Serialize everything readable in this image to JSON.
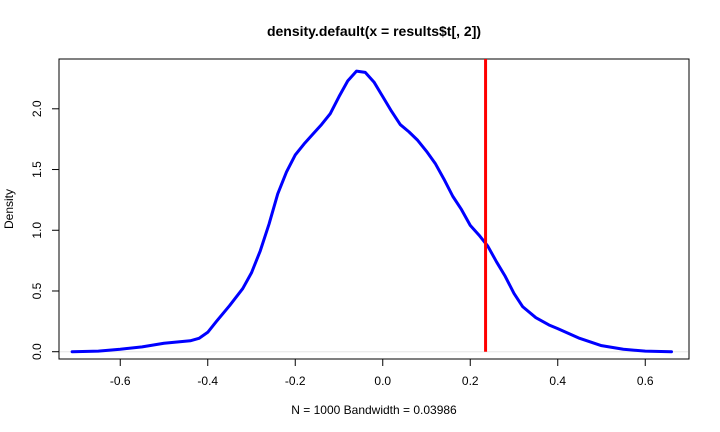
{
  "chart_data": {
    "type": "line",
    "title": "density.default(x = results$t[, 2])",
    "xlabel": "N = 1000   Bandwidth = 0.03986",
    "ylabel": "Density",
    "xlim": [
      -0.74,
      0.7
    ],
    "ylim": [
      -0.06,
      2.41
    ],
    "x_ticks": [
      -0.6,
      -0.4,
      -0.2,
      0.0,
      0.2,
      0.4,
      0.6
    ],
    "x_tick_labels": [
      "-0.6",
      "-0.4",
      "-0.2",
      "0.0",
      "0.2",
      "0.4",
      "0.6"
    ],
    "y_ticks": [
      0.0,
      0.5,
      1.0,
      1.5,
      2.0
    ],
    "y_tick_labels": [
      "0.0",
      "0.5",
      "1.0",
      "1.5",
      "2.0"
    ],
    "grid": false,
    "series": [
      {
        "color": "#0000ff",
        "x": [
          -0.71,
          -0.65,
          -0.6,
          -0.55,
          -0.5,
          -0.47,
          -0.44,
          -0.42,
          -0.4,
          -0.38,
          -0.35,
          -0.32,
          -0.3,
          -0.28,
          -0.26,
          -0.24,
          -0.22,
          -0.2,
          -0.18,
          -0.16,
          -0.14,
          -0.12,
          -0.1,
          -0.08,
          -0.06,
          -0.04,
          -0.02,
          0.0,
          0.02,
          0.04,
          0.06,
          0.08,
          0.1,
          0.12,
          0.14,
          0.16,
          0.18,
          0.2,
          0.22,
          0.24,
          0.26,
          0.28,
          0.3,
          0.32,
          0.35,
          0.38,
          0.4,
          0.45,
          0.5,
          0.55,
          0.6,
          0.66
        ],
        "y": [
          0.0,
          0.005,
          0.02,
          0.04,
          0.07,
          0.08,
          0.09,
          0.11,
          0.16,
          0.25,
          0.38,
          0.52,
          0.65,
          0.83,
          1.05,
          1.3,
          1.48,
          1.62,
          1.71,
          1.79,
          1.87,
          1.96,
          2.1,
          2.23,
          2.31,
          2.3,
          2.22,
          2.1,
          1.98,
          1.87,
          1.81,
          1.74,
          1.65,
          1.55,
          1.42,
          1.28,
          1.17,
          1.04,
          0.96,
          0.87,
          0.74,
          0.62,
          0.48,
          0.37,
          0.28,
          0.22,
          0.19,
          0.11,
          0.05,
          0.02,
          0.005,
          0.0
        ]
      }
    ],
    "reference_line": {
      "x": 0.235,
      "color": "#ff0000"
    },
    "zero_line_color": "#e6e6e6"
  }
}
